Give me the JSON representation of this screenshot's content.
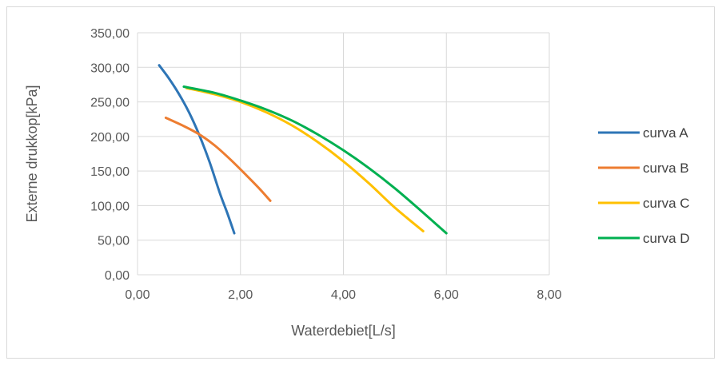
{
  "chart_data": {
    "type": "line",
    "title": "",
    "xlabel": "Waterdebiet[L/s]",
    "ylabel": "Externe drukkop[kPa]",
    "xlim": [
      0,
      8
    ],
    "ylim": [
      0,
      350
    ],
    "x_ticks": [
      0,
      2,
      4,
      6,
      8
    ],
    "x_tick_labels": [
      "0,00",
      "2,00",
      "4,00",
      "6,00",
      "8,00"
    ],
    "y_ticks": [
      0,
      50,
      100,
      150,
      200,
      250,
      300,
      350
    ],
    "y_tick_labels": [
      "0,00",
      "50,00",
      "100,00",
      "150,00",
      "200,00",
      "250,00",
      "300,00",
      "350,00"
    ],
    "grid": true,
    "legend_position": "right",
    "series": [
      {
        "name": "curva A",
        "color": "#2e75b6",
        "x": [
          0.42,
          0.6,
          0.8,
          1.0,
          1.2,
          1.4,
          1.6,
          1.75,
          1.88
        ],
        "y": [
          303,
          285,
          262,
          235,
          202,
          163,
          118,
          88,
          60
        ]
      },
      {
        "name": "curva B",
        "color": "#ed7d31",
        "x": [
          0.55,
          0.9,
          1.2,
          1.5,
          1.8,
          2.1,
          2.35,
          2.58
        ],
        "y": [
          227,
          215,
          203,
          187,
          167,
          145,
          126,
          107
        ]
      },
      {
        "name": "curva C",
        "color": "#ffc000",
        "x": [
          0.95,
          1.5,
          2.0,
          2.5,
          3.0,
          3.5,
          4.0,
          4.5,
          5.0,
          5.55
        ],
        "y": [
          270,
          261,
          250,
          235,
          216,
          192,
          164,
          132,
          97,
          63
        ]
      },
      {
        "name": "curva D",
        "color": "#00b050",
        "x": [
          0.9,
          1.5,
          2.0,
          2.5,
          3.0,
          3.5,
          4.0,
          4.5,
          5.0,
          5.5,
          6.0
        ],
        "y": [
          272,
          263,
          252,
          239,
          223,
          203,
          180,
          154,
          125,
          93,
          60
        ]
      }
    ]
  }
}
